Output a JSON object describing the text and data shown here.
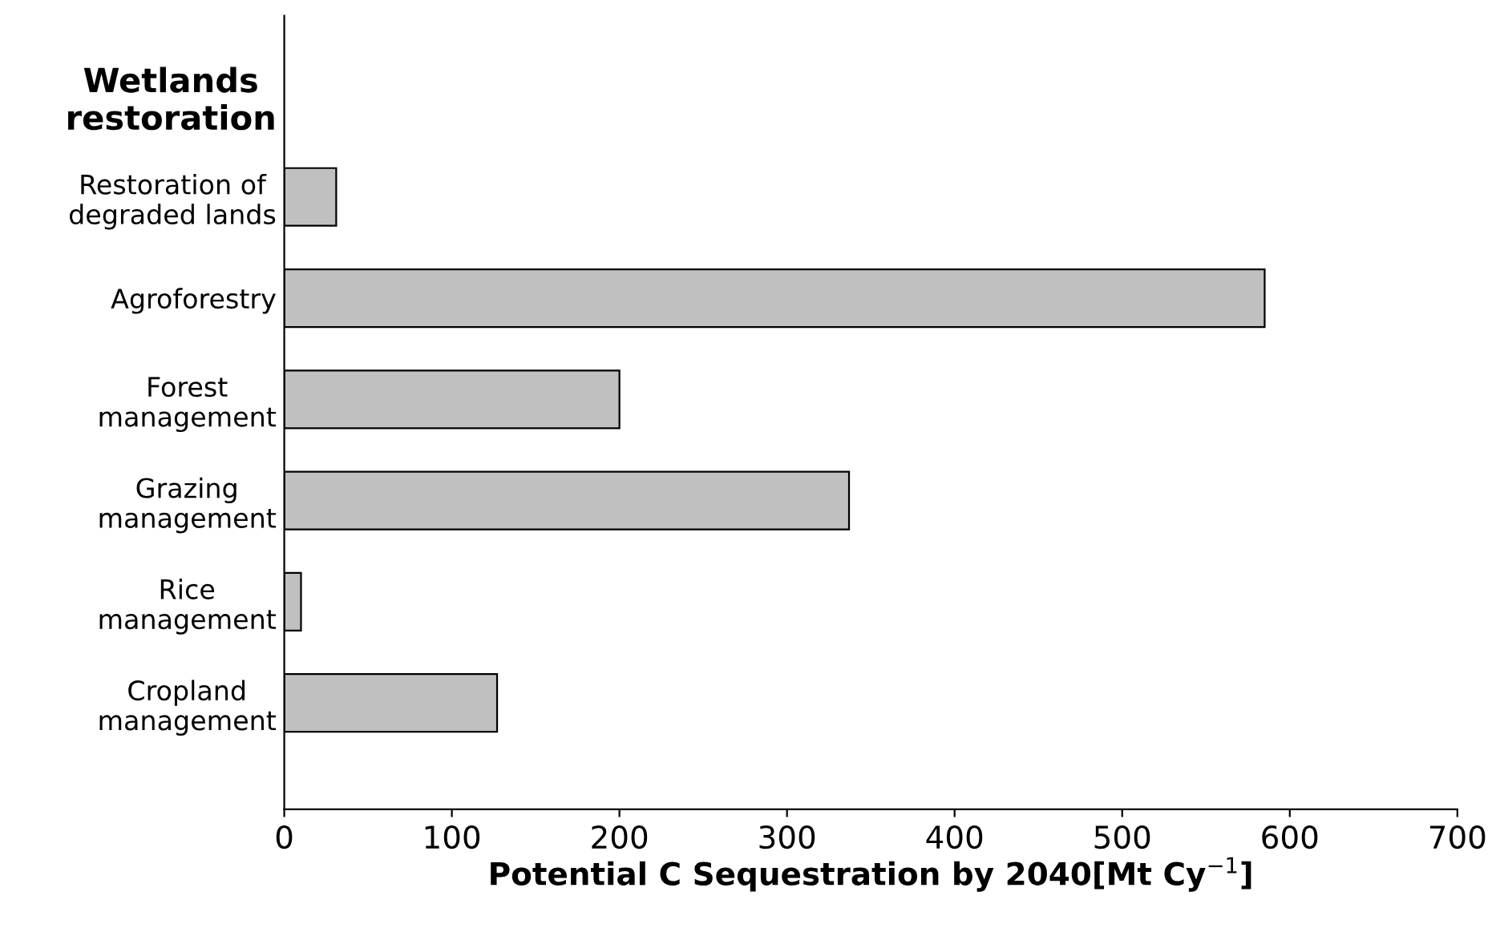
{
  "chart_data": {
    "type": "bar",
    "orientation": "horizontal",
    "categories": [
      "Wetlands\nrestoration",
      "Restoration of\ndegraded lands",
      "Agroforestry",
      "Forest\nmanagement",
      "Grazing\nmanagement",
      "Rice\nmanagement",
      "Cropland\nmanagement"
    ],
    "values": [
      null,
      31,
      585,
      200,
      337,
      10,
      127
    ],
    "color": "#c0c0c0",
    "xlabel": "Potential C Sequestration by 2040[Mt Cy$^{−1}$]",
    "xlim": [
      0,
      700
    ],
    "xticks": [
      0,
      100,
      200,
      300,
      400,
      500,
      600,
      700
    ],
    "grid": false,
    "legend": false
  }
}
